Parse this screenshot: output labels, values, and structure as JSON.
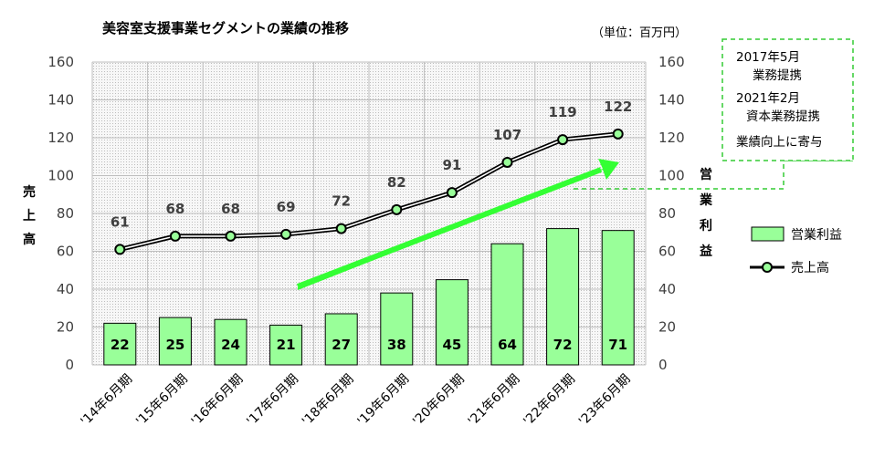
{
  "chart_data": {
    "type": "bar+line",
    "title": "美容室支援事業セグメントの業績の推移",
    "unit_label": "（単位：百万円）",
    "categories": [
      "'14年6月期",
      "'15年6月期",
      "'16年6月期",
      "'17年6月期",
      "'18年6月期",
      "'19年6月期",
      "'20年6月期",
      "'21年6月期",
      "'22年6月期",
      "'23年6月期"
    ],
    "series": [
      {
        "name": "営業利益",
        "kind": "bar",
        "axis": "right",
        "color": "#99ff99",
        "values": [
          22,
          25,
          24,
          21,
          27,
          38,
          45,
          64,
          72,
          71
        ]
      },
      {
        "name": "売上高",
        "kind": "line",
        "axis": "left",
        "color": "#000000",
        "marker_color": "#99ff99",
        "values": [
          61,
          68,
          68,
          69,
          72,
          82,
          91,
          107,
          119,
          122
        ]
      }
    ],
    "left_axis_label": [
      "売",
      "上",
      "高"
    ],
    "right_axis_label": [
      "営",
      "業",
      "利",
      "益"
    ],
    "ylim": [
      0,
      160
    ],
    "yticks": [
      0,
      20,
      40,
      60,
      80,
      100,
      120,
      140,
      160
    ],
    "trend_arrow_color": "#33ff33",
    "annotation": {
      "lines": [
        "2017年5月",
        "業務提携",
        "2021年2月",
        "資本業務提携",
        "業績向上に寄与"
      ],
      "border_color": "#33cc33"
    },
    "legend_position": "right"
  }
}
